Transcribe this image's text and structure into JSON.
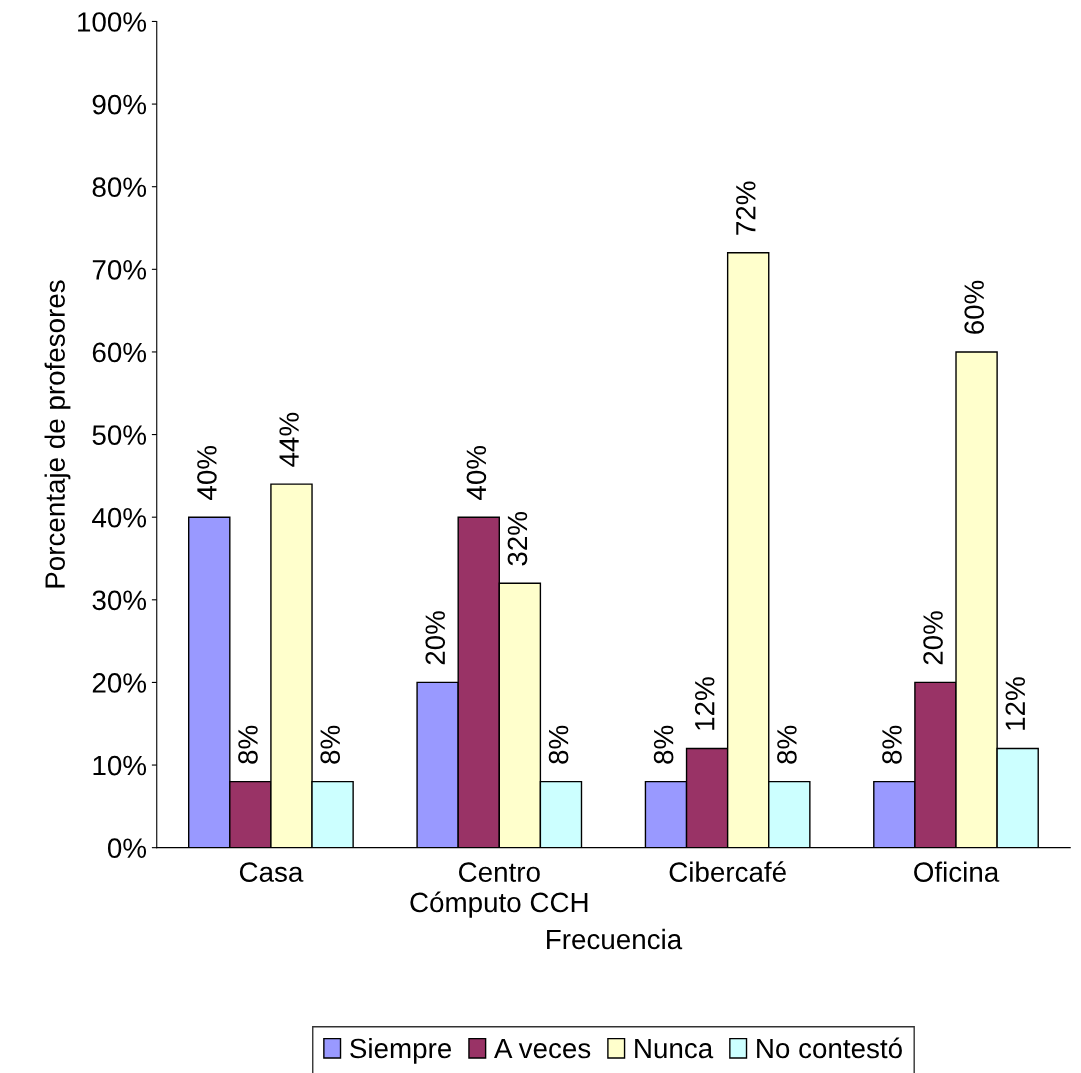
{
  "chart_data": {
    "type": "bar",
    "xlabel": "Frecuencia",
    "ylabel": "Porcentaje de profesores",
    "categories": [
      "Casa",
      "Centro\nCómputo CCH",
      "Cibercafé",
      "Oficina"
    ],
    "series": [
      {
        "name": "Siempre",
        "color": "#9999ff",
        "values": [
          40,
          20,
          8,
          8
        ],
        "value_labels": [
          "40%",
          "20%",
          "8%",
          "8%"
        ]
      },
      {
        "name": "A veces",
        "color": "#993366",
        "values": [
          8,
          40,
          12,
          20
        ],
        "value_labels": [
          "8%",
          "40%",
          "12%",
          "20%"
        ]
      },
      {
        "name": "Nunca",
        "color": "#ffffcc",
        "values": [
          44,
          32,
          72,
          60
        ],
        "value_labels": [
          "44%",
          "32%",
          "72%",
          "60%"
        ]
      },
      {
        "name": "No contestó",
        "color": "#ccffff",
        "values": [
          8,
          8,
          8,
          12
        ],
        "value_labels": [
          "8%",
          "8%",
          "8%",
          "12%"
        ]
      }
    ],
    "ylim": [
      0,
      100
    ],
    "yticks": [
      {
        "value": 0,
        "label": "0%"
      },
      {
        "value": 10,
        "label": "10%"
      },
      {
        "value": 20,
        "label": "20%"
      },
      {
        "value": 30,
        "label": "30%"
      },
      {
        "value": 40,
        "label": "40%"
      },
      {
        "value": 50,
        "label": "50%"
      },
      {
        "value": 60,
        "label": "60%"
      },
      {
        "value": 70,
        "label": "70%"
      },
      {
        "value": 80,
        "label": "80%"
      },
      {
        "value": 90,
        "label": "90%"
      },
      {
        "value": 100,
        "label": "100%"
      }
    ],
    "legend": "bottom",
    "grid": false
  }
}
